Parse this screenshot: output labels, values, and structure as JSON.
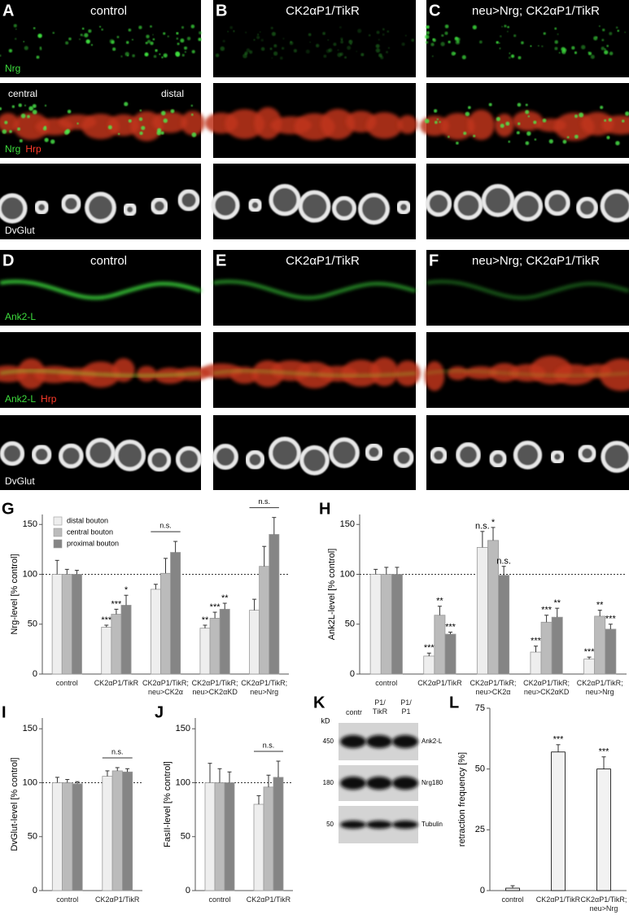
{
  "images": [
    {
      "panels": [
        {
          "letter": "A",
          "title": "control"
        },
        {
          "letter": "B",
          "title": "CK2αP1/TikR"
        },
        {
          "letter": "C",
          "title": "neu>Nrg; CK2αP1/TikR"
        }
      ],
      "channels": [
        [
          {
            "name": "Nrg",
            "color": "#3ddc3d"
          }
        ],
        [
          {
            "name": "Nrg",
            "color": "#3ddc3d"
          },
          {
            "name": "Hrp",
            "color": "#ff3a2a"
          }
        ],
        [
          {
            "name": "DvGlut",
            "color": "#ffffff"
          }
        ]
      ],
      "annotations": [
        "central",
        "distal"
      ]
    },
    {
      "panels": [
        {
          "letter": "D",
          "title": "control"
        },
        {
          "letter": "E",
          "title": "CK2αP1/TikR"
        },
        {
          "letter": "F",
          "title": "neu>Nrg; CK2αP1/TikR"
        }
      ],
      "channels": [
        [
          {
            "name": "Ank2-L",
            "color": "#3ddc3d"
          }
        ],
        [
          {
            "name": "Ank2-L",
            "color": "#3ddc3d"
          },
          {
            "name": "Hrp",
            "color": "#ff3a2a"
          }
        ],
        [
          {
            "name": "DvGlut",
            "color": "#ffffff"
          }
        ]
      ]
    }
  ],
  "chart_data": [
    {
      "type": "bar",
      "panel": "G",
      "ylabel": "Nrg-level [% control]",
      "ylim": [
        0,
        160
      ],
      "yticks": [
        0,
        50,
        100,
        150
      ],
      "reference_line": 100,
      "legend": "upper left",
      "edgecolor": "#999999",
      "categories": [
        "control",
        "CK2αP1/TikR",
        "CK2αP1/TikR;\nneu>CK2α",
        "CK2αP1/TikR;\nneu>CK2αKD",
        "CK2αP1/TikR;\nneu>Nrg"
      ],
      "group_labels": [
        null,
        null,
        "n.s.",
        null,
        "n.s."
      ],
      "series": [
        {
          "name": "distal bouton",
          "color": "#eeeeee",
          "values": [
            100,
            47,
            85,
            46,
            64
          ],
          "errors": [
            14,
            2,
            5,
            3,
            11
          ],
          "significance": [
            null,
            "***",
            null,
            "**",
            null
          ]
        },
        {
          "name": "central bouton",
          "color": "#bbbbbb",
          "values": [
            100,
            60,
            101,
            56,
            108
          ],
          "errors": [
            5,
            5,
            15,
            6,
            20
          ],
          "significance": [
            null,
            "***",
            null,
            "***",
            null
          ]
        },
        {
          "name": "proximal bouton",
          "color": "#858585",
          "values": [
            100,
            69,
            122,
            65,
            140
          ],
          "errors": [
            4,
            10,
            11,
            6,
            17
          ],
          "significance": [
            null,
            "*",
            null,
            "**",
            null
          ]
        }
      ]
    },
    {
      "type": "bar",
      "panel": "H",
      "ylabel": "Ank2L-level [% control]",
      "ylim": [
        0,
        160
      ],
      "yticks": [
        0,
        50,
        100,
        150
      ],
      "reference_line": 100,
      "edgecolor": "#999999",
      "categories": [
        "control",
        "CK2αP1/TikR",
        "CK2αP1/TikR;\nneu>CK2α",
        "CK2αP1/TikR;\nneu>CK2αKD",
        "CK2αP1/TikR;\nneu>Nrg"
      ],
      "series": [
        {
          "color": "#eeeeee",
          "values": [
            100,
            18,
            127,
            22,
            15
          ],
          "errors": [
            5,
            3,
            16,
            6,
            2
          ],
          "significance": [
            null,
            "***",
            "n.s.",
            "***",
            "***"
          ]
        },
        {
          "color": "#bbbbbb",
          "values": [
            100,
            59,
            134,
            52,
            58
          ],
          "errors": [
            7,
            9,
            13,
            7,
            6
          ],
          "significance": [
            null,
            "**",
            "*",
            "***",
            "**"
          ]
        },
        {
          "color": "#858585",
          "values": [
            100,
            40,
            99,
            57,
            45
          ],
          "errors": [
            7,
            2,
            9,
            9,
            5
          ],
          "significance": [
            null,
            "***",
            "n.s.",
            "**",
            "***"
          ]
        }
      ]
    },
    {
      "type": "bar",
      "panel": "I",
      "ylabel": "DvGlut-level [% control]",
      "ylim": [
        0,
        160
      ],
      "yticks": [
        0,
        50,
        100,
        150
      ],
      "reference_line": 100,
      "edgecolor": "#999999",
      "categories": [
        "control",
        "CK2αP1/TikR"
      ],
      "group_labels": [
        null,
        "n.s."
      ],
      "series": [
        {
          "color": "#eeeeee",
          "values": [
            100,
            106
          ],
          "errors": [
            5,
            5
          ]
        },
        {
          "color": "#bbbbbb",
          "values": [
            100,
            111
          ],
          "errors": [
            3,
            3
          ]
        },
        {
          "color": "#858585",
          "values": [
            99,
            110
          ],
          "errors": [
            2,
            3
          ]
        }
      ]
    },
    {
      "type": "bar",
      "panel": "J",
      "ylabel": "FasII-level [% control]",
      "ylim": [
        0,
        160
      ],
      "yticks": [
        0,
        50,
        100,
        150
      ],
      "reference_line": 100,
      "edgecolor": "#999999",
      "categories": [
        "control",
        "CK2αP1/TikR"
      ],
      "group_labels": [
        null,
        "n.s."
      ],
      "series": [
        {
          "color": "#eeeeee",
          "values": [
            100,
            80
          ],
          "errors": [
            18,
            8
          ]
        },
        {
          "color": "#bbbbbb",
          "values": [
            100,
            96
          ],
          "errors": [
            13,
            11
          ]
        },
        {
          "color": "#858585",
          "values": [
            100,
            105
          ],
          "errors": [
            10,
            15
          ]
        }
      ]
    },
    {
      "type": "bar",
      "panel": "L",
      "ylabel": "retraction frequency [%]",
      "ylim": [
        0,
        75
      ],
      "yticks": [
        0,
        25,
        50,
        75
      ],
      "edgecolor": "#000000",
      "categories": [
        "control",
        "CK2αP1/TikR",
        "CK2αP1/TikR;\nneu>Nrg"
      ],
      "series": [
        {
          "color": "#f2f2f2",
          "values": [
            1,
            57,
            50
          ],
          "errors": [
            1,
            3,
            5
          ],
          "significance": [
            null,
            "***",
            "***"
          ]
        }
      ]
    }
  ],
  "blot": {
    "panel": "K",
    "unit": "kD",
    "lanes": [
      "contr",
      "P1/\nTikR",
      "P1/\nP1"
    ],
    "markers": [
      450,
      180,
      50
    ],
    "bands": [
      "Ank2-L",
      "Nrg180",
      "Tubulin"
    ]
  }
}
